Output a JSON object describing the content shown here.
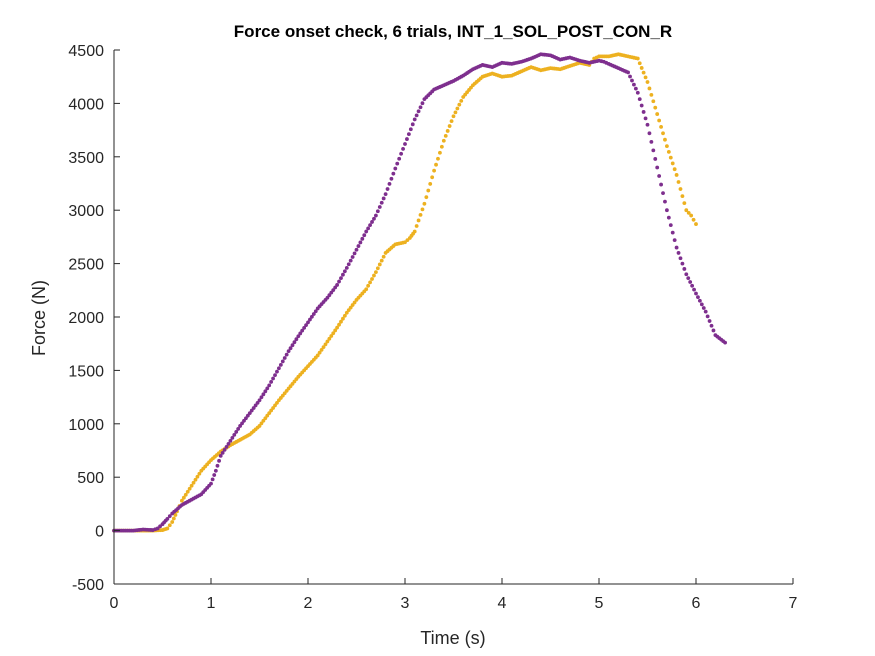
{
  "chart_data": {
    "type": "scatter",
    "title": "Force onset check, 6 trials, INT_1_SOL_POST_CON_R",
    "xlabel": "Time (s)",
    "ylabel": "Force (N)",
    "xlim": [
      0,
      7
    ],
    "ylim": [
      -500,
      4500
    ],
    "xticks": [
      "0",
      "1",
      "2",
      "3",
      "4",
      "5",
      "6",
      "7"
    ],
    "yticks": [
      "-500",
      "0",
      "500",
      "1000",
      "1500",
      "2000",
      "2500",
      "3000",
      "3500",
      "4000",
      "4500"
    ],
    "grid": false,
    "legend": "none",
    "series": [
      {
        "color": "#EDB120",
        "marker": "dot",
        "points": [
          [
            0,
            0
          ],
          [
            0.2,
            0
          ],
          [
            0.4,
            0
          ],
          [
            0.5,
            5
          ],
          [
            0.55,
            20
          ],
          [
            0.6,
            80
          ],
          [
            0.65,
            180
          ],
          [
            0.7,
            280
          ],
          [
            0.8,
            420
          ],
          [
            0.9,
            560
          ],
          [
            1.0,
            660
          ],
          [
            1.1,
            740
          ],
          [
            1.2,
            800
          ],
          [
            1.3,
            850
          ],
          [
            1.4,
            900
          ],
          [
            1.5,
            980
          ],
          [
            1.6,
            1100
          ],
          [
            1.7,
            1220
          ],
          [
            1.8,
            1330
          ],
          [
            1.9,
            1440
          ],
          [
            2.0,
            1540
          ],
          [
            2.1,
            1640
          ],
          [
            2.2,
            1770
          ],
          [
            2.3,
            1900
          ],
          [
            2.4,
            2040
          ],
          [
            2.5,
            2160
          ],
          [
            2.6,
            2260
          ],
          [
            2.7,
            2420
          ],
          [
            2.8,
            2600
          ],
          [
            2.9,
            2680
          ],
          [
            3.0,
            2700
          ],
          [
            3.05,
            2740
          ],
          [
            3.1,
            2800
          ],
          [
            3.2,
            3060
          ],
          [
            3.3,
            3370
          ],
          [
            3.4,
            3650
          ],
          [
            3.5,
            3880
          ],
          [
            3.6,
            4060
          ],
          [
            3.7,
            4170
          ],
          [
            3.8,
            4250
          ],
          [
            3.9,
            4280
          ],
          [
            4.0,
            4250
          ],
          [
            4.1,
            4260
          ],
          [
            4.2,
            4300
          ],
          [
            4.3,
            4340
          ],
          [
            4.4,
            4310
          ],
          [
            4.5,
            4330
          ],
          [
            4.6,
            4320
          ],
          [
            4.7,
            4350
          ],
          [
            4.8,
            4380
          ],
          [
            4.9,
            4360
          ],
          [
            4.95,
            4420
          ],
          [
            5.0,
            4440
          ],
          [
            5.1,
            4440
          ],
          [
            5.2,
            4460
          ],
          [
            5.3,
            4440
          ],
          [
            5.4,
            4420
          ],
          [
            5.5,
            4200
          ],
          [
            5.6,
            3900
          ],
          [
            5.7,
            3600
          ],
          [
            5.8,
            3330
          ],
          [
            5.9,
            3000
          ],
          [
            5.95,
            2950
          ],
          [
            6.0,
            2870
          ]
        ]
      },
      {
        "color": "#7E2F8E",
        "marker": "dot",
        "points": [
          [
            0,
            0
          ],
          [
            0.1,
            0
          ],
          [
            0.2,
            0
          ],
          [
            0.3,
            10
          ],
          [
            0.4,
            5
          ],
          [
            0.45,
            20
          ],
          [
            0.5,
            60
          ],
          [
            0.55,
            110
          ],
          [
            0.6,
            160
          ],
          [
            0.7,
            240
          ],
          [
            0.8,
            290
          ],
          [
            0.9,
            340
          ],
          [
            1.0,
            440
          ],
          [
            1.05,
            560
          ],
          [
            1.1,
            700
          ],
          [
            1.2,
            840
          ],
          [
            1.3,
            980
          ],
          [
            1.4,
            1100
          ],
          [
            1.5,
            1220
          ],
          [
            1.6,
            1360
          ],
          [
            1.7,
            1520
          ],
          [
            1.8,
            1680
          ],
          [
            1.9,
            1820
          ],
          [
            2.0,
            1950
          ],
          [
            2.1,
            2080
          ],
          [
            2.2,
            2180
          ],
          [
            2.3,
            2300
          ],
          [
            2.4,
            2460
          ],
          [
            2.5,
            2630
          ],
          [
            2.6,
            2800
          ],
          [
            2.7,
            2950
          ],
          [
            2.8,
            3150
          ],
          [
            2.9,
            3390
          ],
          [
            3.0,
            3620
          ],
          [
            3.1,
            3850
          ],
          [
            3.2,
            4040
          ],
          [
            3.3,
            4130
          ],
          [
            3.4,
            4170
          ],
          [
            3.5,
            4210
          ],
          [
            3.6,
            4260
          ],
          [
            3.7,
            4320
          ],
          [
            3.8,
            4360
          ],
          [
            3.9,
            4340
          ],
          [
            4.0,
            4380
          ],
          [
            4.1,
            4370
          ],
          [
            4.2,
            4390
          ],
          [
            4.3,
            4420
          ],
          [
            4.4,
            4460
          ],
          [
            4.5,
            4450
          ],
          [
            4.6,
            4410
          ],
          [
            4.7,
            4430
          ],
          [
            4.8,
            4400
          ],
          [
            4.9,
            4380
          ],
          [
            5.0,
            4400
          ],
          [
            5.05,
            4390
          ],
          [
            5.1,
            4370
          ],
          [
            5.2,
            4330
          ],
          [
            5.3,
            4290
          ],
          [
            5.4,
            4100
          ],
          [
            5.5,
            3800
          ],
          [
            5.6,
            3400
          ],
          [
            5.7,
            3000
          ],
          [
            5.8,
            2650
          ],
          [
            5.9,
            2400
          ],
          [
            6.0,
            2220
          ],
          [
            6.1,
            2050
          ],
          [
            6.2,
            1830
          ],
          [
            6.3,
            1760
          ]
        ]
      }
    ]
  }
}
